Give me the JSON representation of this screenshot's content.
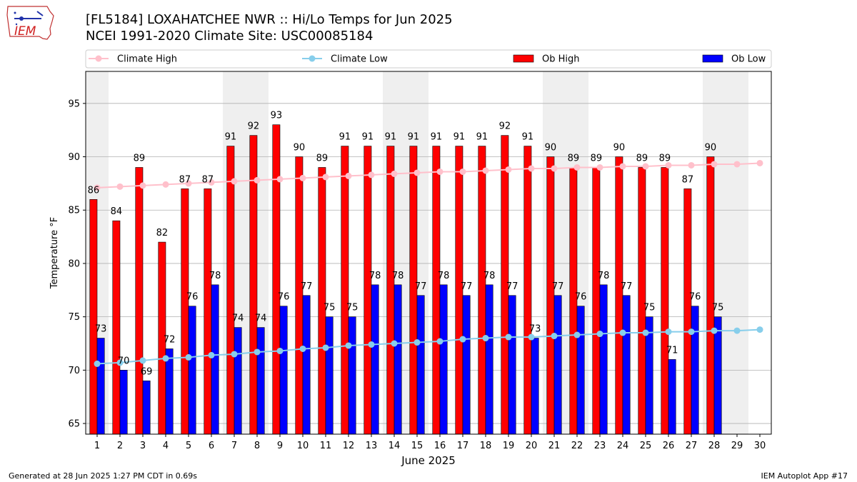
{
  "header": {
    "title": "[FL5184] LOXAHATCHEE NWR :: Hi/Lo Temps for Jun 2025",
    "subtitle": "NCEI 1991-2020 Climate Site: USC00085184",
    "logo_text": "IEM"
  },
  "footer": {
    "generated": "Generated at 28 Jun 2025 1:27 PM CDT in 0.69s",
    "app": "IEM Autoplot App #17"
  },
  "colors": {
    "ob_high": "#ff0000",
    "ob_low": "#0000ff",
    "climate_high": "#ffc0cb",
    "climate_low": "#87ceeb",
    "weekend_shade": "#efefef",
    "grid": "#b0b0b0"
  },
  "chart_data": {
    "type": "bar",
    "xlabel": "June 2025",
    "ylabel": "Temperature °F",
    "ylim": [
      64,
      98
    ],
    "yticks": [
      65,
      70,
      75,
      80,
      85,
      90,
      95
    ],
    "grid": true,
    "legend_position": "top",
    "legend": [
      "Climate High",
      "Climate Low",
      "Ob High",
      "Ob Low"
    ],
    "days": [
      1,
      2,
      3,
      4,
      5,
      6,
      7,
      8,
      9,
      10,
      11,
      12,
      13,
      14,
      15,
      16,
      17,
      18,
      19,
      20,
      21,
      22,
      23,
      24,
      25,
      26,
      27,
      28,
      29,
      30
    ],
    "shaded_days": [
      1,
      7,
      8,
      14,
      15,
      21,
      22,
      28,
      29
    ],
    "series": [
      {
        "name": "Ob High",
        "kind": "bar",
        "values": [
          86,
          84,
          89,
          82,
          87,
          87,
          91,
          92,
          93,
          90,
          89,
          91,
          91,
          91,
          91,
          91,
          91,
          91,
          92,
          91,
          90,
          89,
          89,
          90,
          89,
          89,
          87,
          90,
          null,
          null
        ]
      },
      {
        "name": "Ob Low",
        "kind": "bar",
        "values": [
          73,
          70,
          69,
          72,
          76,
          78,
          74,
          74,
          76,
          77,
          75,
          75,
          78,
          78,
          77,
          78,
          77,
          78,
          77,
          73,
          77,
          76,
          78,
          77,
          75,
          71,
          76,
          75,
          null,
          null
        ]
      },
      {
        "name": "Climate High",
        "kind": "line",
        "values": [
          87.1,
          87.2,
          87.3,
          87.4,
          87.5,
          87.6,
          87.7,
          87.8,
          87.9,
          88.0,
          88.1,
          88.2,
          88.3,
          88.4,
          88.5,
          88.6,
          88.6,
          88.7,
          88.8,
          88.9,
          88.9,
          89.0,
          89.0,
          89.1,
          89.1,
          89.2,
          89.2,
          89.3,
          89.3,
          89.4
        ]
      },
      {
        "name": "Climate Low",
        "kind": "line",
        "values": [
          70.6,
          70.7,
          70.9,
          71.1,
          71.2,
          71.4,
          71.5,
          71.7,
          71.8,
          72.0,
          72.1,
          72.3,
          72.4,
          72.5,
          72.6,
          72.7,
          72.9,
          73.0,
          73.1,
          73.1,
          73.2,
          73.3,
          73.4,
          73.5,
          73.5,
          73.6,
          73.6,
          73.7,
          73.7,
          73.8
        ]
      }
    ]
  }
}
